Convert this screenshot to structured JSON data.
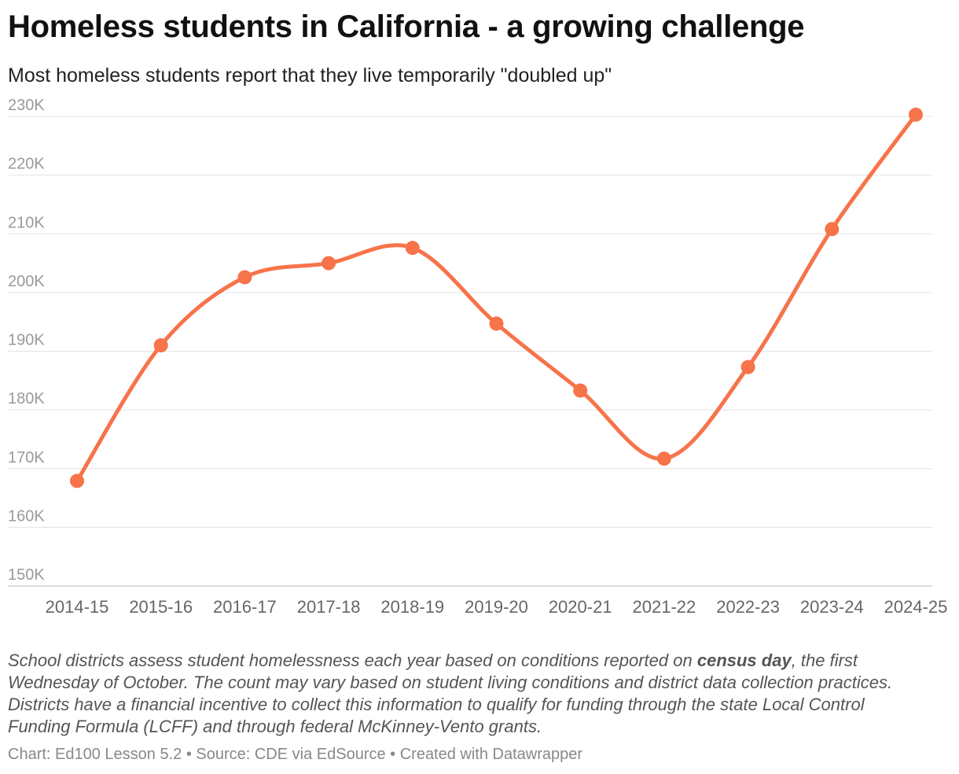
{
  "header": {
    "title": "Homeless students in California - a growing challenge",
    "subtitle": "Most homeless students report that they live temporarily \"doubled up\""
  },
  "notes": {
    "part1": "School districts assess student homelessness each year based on conditions reported on ",
    "bold": "census day",
    "part2": ", the first Wednesday of October. The count may vary based on student living conditions and district data collection practices. Districts have a financial incentive to collect this information to qualify for funding through the state Local Control Funding Formula (LCFF) and through federal McKinney-Vento grants."
  },
  "footer": {
    "text": "Chart: Ed100 Lesson 5.2 • Source: CDE via EdSource • Created with Datawrapper"
  },
  "colors": {
    "line": "#f7734a",
    "grid": "#e3e3e3",
    "axis": "#cfcfcf"
  },
  "chart_data": {
    "type": "line",
    "title": "Homeless students in California - a growing challenge",
    "subtitle": "Most homeless students report that they live temporarily \"doubled up\"",
    "xlabel": "",
    "ylabel": "",
    "categories": [
      "2014-15",
      "2015-16",
      "2016-17",
      "2017-18",
      "2018-19",
      "2019-20",
      "2020-21",
      "2021-22",
      "2022-23",
      "2023-24",
      "2024-25"
    ],
    "series": [
      {
        "values": [
          167900,
          191000,
          202600,
          205000,
          207600,
          194700,
          183300,
          171700,
          187300,
          210800,
          230300
        ]
      }
    ],
    "ylim": [
      150000,
      230000
    ],
    "yticks": [
      150000,
      160000,
      170000,
      180000,
      190000,
      200000,
      210000,
      220000,
      230000
    ],
    "ytick_labels": [
      "150K",
      "160K",
      "170K",
      "180K",
      "190K",
      "200K",
      "210K",
      "220K",
      "230K"
    ],
    "grid": true,
    "legend": "none",
    "line_style": "smooth",
    "markers": true
  }
}
